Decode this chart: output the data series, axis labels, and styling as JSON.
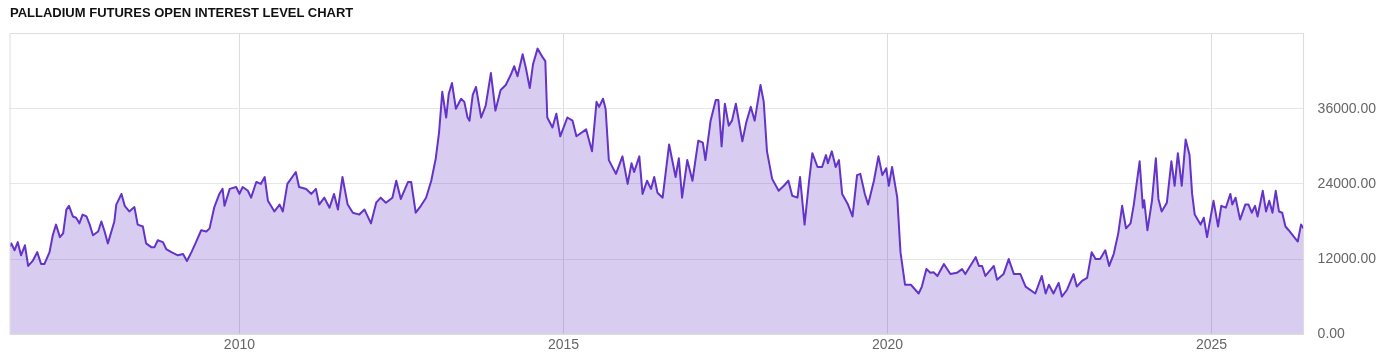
{
  "chart_data": {
    "type": "area",
    "title": "PALLADIUM FUTURES OPEN INTEREST LEVEL CHART",
    "color": "#6434c8",
    "x": [
      2006.46,
      2006.48,
      2006.53,
      2006.58,
      2006.63,
      2006.69,
      2006.74,
      2006.81,
      2006.88,
      2006.94,
      2006.99,
      2007.07,
      2007.12,
      2007.17,
      2007.23,
      2007.28,
      2007.33,
      2007.37,
      2007.43,
      2007.48,
      2007.53,
      2007.58,
      2007.64,
      2007.69,
      2007.74,
      2007.82,
      2007.87,
      2007.92,
      2007.97,
      2008.07,
      2008.1,
      2008.18,
      2008.23,
      2008.3,
      2008.38,
      2008.43,
      2008.51,
      2008.56,
      2008.64,
      2008.69,
      2008.74,
      2008.82,
      2008.87,
      2008.95,
      2009.05,
      2009.13,
      2009.19,
      2009.26,
      2009.33,
      2009.41,
      2009.49,
      2009.54,
      2009.61,
      2009.69,
      2009.74,
      2009.77,
      2009.85,
      2009.95,
      2010.0,
      2010.05,
      2010.13,
      2010.18,
      2010.26,
      2010.33,
      2010.39,
      2010.44,
      2010.54,
      2010.62,
      2010.67,
      2010.74,
      2010.87,
      2010.92,
      2011.03,
      2011.11,
      2011.18,
      2011.23,
      2011.31,
      2011.39,
      2011.46,
      2011.52,
      2011.59,
      2011.67,
      2011.75,
      2011.85,
      2011.93,
      2012.03,
      2012.11,
      2012.18,
      2012.26,
      2012.36,
      2012.42,
      2012.49,
      2012.6,
      2012.65,
      2012.72,
      2012.8,
      2012.88,
      2012.96,
      2013.03,
      2013.08,
      2013.13,
      2013.19,
      2013.23,
      2013.28,
      2013.34,
      2013.42,
      2013.47,
      2013.52,
      2013.55,
      2013.6,
      2013.65,
      2013.73,
      2013.8,
      2013.88,
      2013.95,
      2014.03,
      2014.11,
      2014.19,
      2014.24,
      2014.29,
      2014.37,
      2014.42,
      2014.48,
      2014.53,
      2014.6,
      2014.68,
      2014.72,
      2014.75,
      2014.83,
      2014.89,
      2014.95,
      2015.06,
      2015.14,
      2015.2,
      2015.35,
      2015.44,
      2015.51,
      2015.55,
      2015.61,
      2015.65,
      2015.7,
      2015.81,
      2015.91,
      2015.99,
      2016.05,
      2016.09,
      2016.17,
      2016.22,
      2016.29,
      2016.35,
      2016.4,
      2016.45,
      2016.53,
      2016.63,
      2016.73,
      2016.78,
      2016.83,
      2016.91,
      2016.99,
      2017.08,
      2017.15,
      2017.19,
      2017.27,
      2017.35,
      2017.39,
      2017.44,
      2017.49,
      2017.55,
      2017.6,
      2017.66,
      2017.71,
      2017.76,
      2017.82,
      2017.89,
      2017.95,
      2018.04,
      2018.09,
      2018.14,
      2018.22,
      2018.32,
      2018.4,
      2018.47,
      2018.53,
      2018.61,
      2018.65,
      2018.72,
      2018.79,
      2018.84,
      2018.92,
      2018.99,
      2019.05,
      2019.08,
      2019.14,
      2019.2,
      2019.25,
      2019.3,
      2019.39,
      2019.46,
      2019.53,
      2019.58,
      2019.65,
      2019.7,
      2019.79,
      2019.86,
      2019.92,
      2019.98,
      2020.02,
      2020.07,
      2020.15,
      2020.2,
      2020.27,
      2020.36,
      2020.48,
      2020.53,
      2020.6,
      2020.66,
      2020.71,
      2020.77,
      2020.87,
      2020.97,
      2021.07,
      2021.15,
      2021.2,
      2021.36,
      2021.41,
      2021.46,
      2021.51,
      2021.64,
      2021.69,
      2021.79,
      2021.87,
      2021.95,
      2022.05,
      2022.13,
      2022.28,
      2022.38,
      2022.44,
      2022.49,
      2022.56,
      2022.64,
      2022.69,
      2022.77,
      2022.87,
      2022.92,
      2023.0,
      2023.08,
      2023.15,
      2023.21,
      2023.28,
      2023.36,
      2023.42,
      2023.49,
      2023.56,
      2023.62,
      2023.68,
      2023.75,
      2023.8,
      2023.89,
      2023.94,
      2023.96,
      2024.01,
      2024.08,
      2024.14,
      2024.18,
      2024.23,
      2024.31,
      2024.38,
      2024.43,
      2024.48,
      2024.54,
      2024.6,
      2024.66,
      2024.7,
      2024.74,
      2024.83,
      2024.88,
      2024.93,
      2025.03,
      2025.1,
      2025.15,
      2025.22,
      2025.29,
      2025.32,
      2025.37,
      2025.44,
      2025.52,
      2025.57,
      2025.62,
      2025.67,
      2025.71,
      2025.79,
      2025.84,
      2025.89,
      2025.94,
      2025.99,
      2026.04,
      2026.09,
      2026.14,
      2026.19,
      2026.29,
      2026.33,
      2026.38,
      2026.42
    ],
    "values": [
      14000,
      14500,
      13400,
      14700,
      12600,
      14200,
      10900,
      11700,
      13100,
      11200,
      11200,
      13100,
      15800,
      17500,
      15500,
      16100,
      19900,
      20500,
      18800,
      18600,
      17700,
      19100,
      18800,
      17500,
      15800,
      16400,
      18000,
      16400,
      14500,
      18000,
      20700,
      22400,
      20500,
      19600,
      20300,
      17500,
      17200,
      14500,
      13900,
      13900,
      15000,
      14700,
      13600,
      13100,
      12600,
      12800,
      11700,
      13100,
      14700,
      16600,
      16400,
      16900,
      20200,
      22400,
      23200,
      20500,
      23200,
      23500,
      22400,
      23500,
      22900,
      21800,
      24300,
      24000,
      25100,
      21300,
      19600,
      20700,
      19600,
      24000,
      25900,
      23500,
      23200,
      22400,
      23200,
      20700,
      21800,
      20200,
      22400,
      19900,
      25100,
      20700,
      19400,
      19100,
      19900,
      17700,
      21000,
      21800,
      21000,
      21800,
      24500,
      21600,
      24300,
      24300,
      19400,
      20500,
      21800,
      24500,
      28100,
      32200,
      38700,
      34600,
      38400,
      40100,
      36000,
      37600,
      37100,
      34600,
      34100,
      38200,
      39500,
      34600,
      36500,
      41700,
      35700,
      39000,
      39800,
      41500,
      42800,
      41200,
      44700,
      42500,
      39300,
      43100,
      45600,
      44200,
      43600,
      34600,
      33000,
      35200,
      31600,
      34600,
      34100,
      31600,
      32700,
      29200,
      37100,
      36300,
      37600,
      36000,
      27800,
      25600,
      28400,
      24000,
      27300,
      25900,
      28400,
      22400,
      24500,
      23200,
      25100,
      22600,
      21800,
      30300,
      25100,
      28100,
      21800,
      27800,
      24500,
      30900,
      30600,
      27800,
      34100,
      37400,
      37400,
      30000,
      36800,
      33300,
      34100,
      36800,
      33800,
      30800,
      33800,
      36300,
      34100,
      39800,
      37100,
      29200,
      24800,
      22900,
      23700,
      24500,
      22100,
      21800,
      25100,
      17500,
      24500,
      28900,
      26700,
      26700,
      28600,
      27300,
      29200,
      26700,
      27800,
      22400,
      20700,
      18800,
      25400,
      25600,
      22400,
      20700,
      24500,
      28400,
      25400,
      26500,
      23700,
      26700,
      21800,
      13100,
      7900,
      7900,
      6500,
      7600,
      10400,
      9800,
      9900,
      9300,
      11200,
      9600,
      9800,
      10400,
      9600,
      12300,
      10900,
      10900,
      9300,
      10900,
      8700,
      9600,
      12000,
      9600,
      9600,
      7600,
      6500,
      9300,
      6500,
      7900,
      6500,
      8200,
      6000,
      7100,
      9600,
      7600,
      8500,
      9000,
      13100,
      12000,
      12000,
      13400,
      10900,
      12800,
      16100,
      20500,
      16900,
      17700,
      20700,
      27600,
      20200,
      21400,
      16600,
      21300,
      28100,
      21600,
      19600,
      21000,
      27600,
      23700,
      28900,
      23700,
      31100,
      28600,
      22400,
      19100,
      17500,
      18600,
      15500,
      21300,
      17200,
      20500,
      20200,
      22400,
      20700,
      21800,
      18300,
      20700,
      20700,
      19400,
      20500,
      18800,
      22900,
      19600,
      21300,
      19400,
      22900,
      19600,
      19400,
      17200,
      16600,
      15300,
      14800,
      17500,
      16900
    ],
    "xlim": [
      2006.46,
      2026.42
    ],
    "xticks": [
      2010,
      2015,
      2020,
      2025
    ],
    "ylim": [
      0,
      48000
    ],
    "yticks": [
      {
        "value": 0,
        "label": "0.00"
      },
      {
        "value": 12000,
        "label": "12000.00"
      },
      {
        "value": 24000,
        "label": "24000.00"
      },
      {
        "value": 36000,
        "label": "36000.00"
      }
    ],
    "grid": true
  }
}
